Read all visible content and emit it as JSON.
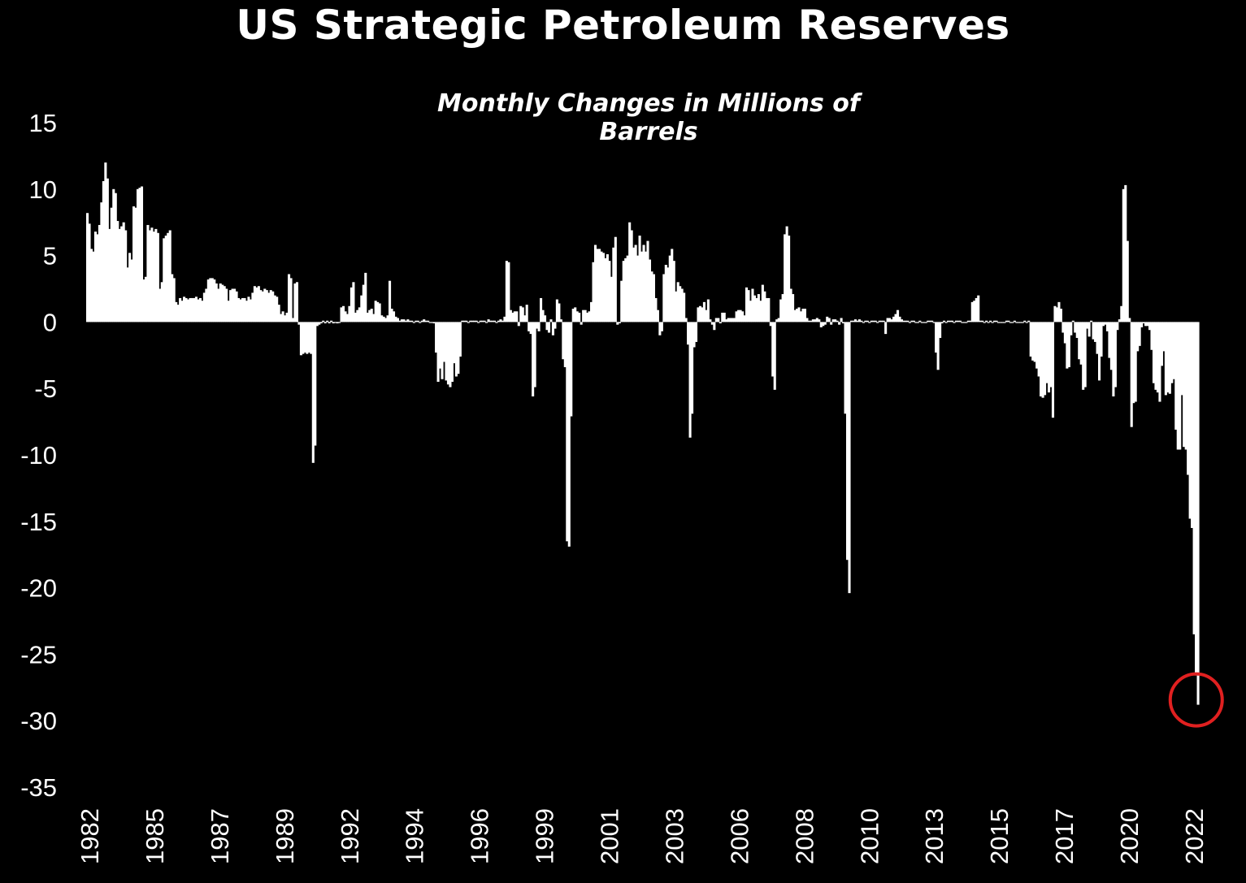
{
  "chart_data": {
    "type": "bar",
    "title": "US Strategic Petroleum Reserves",
    "subtitle": "Monthly Changes in Millions of Barrels",
    "xlabel": "",
    "ylabel": "",
    "ylim": [
      -35,
      15
    ],
    "yticks": [
      15,
      10,
      5,
      0,
      -5,
      -10,
      -15,
      -20,
      -25,
      -30,
      -35
    ],
    "xticks": [
      "1982",
      "1985",
      "1987",
      "1989",
      "1992",
      "1994",
      "1996",
      "1999",
      "2001",
      "2003",
      "2006",
      "2008",
      "2010",
      "2013",
      "2015",
      "2017",
      "2020",
      "2022"
    ],
    "grid": false,
    "bar_color": "#ffffff",
    "highlight_color": "#e02020",
    "highlight_note": "latest monthly change circled",
    "x_start": "1982-01",
    "x_end": "2022-07",
    "series": [
      {
        "values": [
          8.2,
          7.4,
          5.5,
          5.3,
          6.8,
          6.6,
          7.3,
          9,
          10.6,
          12,
          10.8,
          7,
          8.6,
          10,
          9.7,
          7.6,
          7,
          7.2,
          7.5,
          6.9,
          4.1,
          5.2,
          4.7,
          8.7,
          8.6,
          10,
          10.1,
          10.2,
          3.2,
          3.4,
          7.3,
          6.9,
          7.1,
          6.8,
          7,
          6.7,
          2.5,
          3,
          6.3,
          6.5,
          6.7,
          6.9,
          3.6,
          3.3,
          1.5,
          1.3,
          1.8,
          1.6,
          1.9,
          1.8,
          1.7,
          1.8,
          1.8,
          1.8,
          1.9,
          1.7,
          1.8,
          1.6,
          2.2,
          2.5,
          3.2,
          3.3,
          3.3,
          3.2,
          2.9,
          2.5,
          2.9,
          2.8,
          2.7,
          2.5,
          1.6,
          2.4,
          2.5,
          2.5,
          2.3,
          1.8,
          1.7,
          1.8,
          1.8,
          1.6,
          1.9,
          1.7,
          2.2,
          2.7,
          2.6,
          2.7,
          2.4,
          2.3,
          2.5,
          2.4,
          2.2,
          2.4,
          2.3,
          2.0,
          1.9,
          1.3,
          0.6,
          0.8,
          0.5,
          0.7,
          3.6,
          3.3,
          0.3,
          2.9,
          3,
          -0.2,
          -2.5,
          -2.4,
          -2.3,
          -2.4,
          -2.3,
          -2.4,
          -10.6,
          -9.3,
          -0.3,
          -0.2,
          -0.1,
          0.1,
          -0.1,
          0.1,
          -0.1,
          0.1,
          -0.1,
          0,
          -0.1,
          0,
          1.1,
          1.2,
          0.8,
          0.6,
          1.2,
          2.6,
          3,
          0.7,
          0.9,
          1.1,
          2,
          2.8,
          3.7,
          0.7,
          0.9,
          1,
          0.6,
          1.6,
          1.5,
          1.4,
          0.5,
          0.4,
          0.3,
          0.5,
          3.1,
          1,
          0.8,
          0.4,
          0.3,
          0.1,
          0.2,
          0.2,
          0.1,
          0.2,
          0.1,
          0.1,
          0,
          0.1,
          0.1,
          0,
          0.1,
          0.2,
          0.1,
          0.1,
          0,
          0,
          -0.1,
          -2.3,
          -4.5,
          -3.5,
          -4.3,
          -3,
          -4.4,
          -4.7,
          -4.9,
          -4.5,
          -3.1,
          -4.1,
          -3.9,
          -2.6,
          0.1,
          0.1,
          0.1,
          0,
          0.1,
          0.1,
          0.1,
          0.1,
          0,
          0.1,
          0.1,
          0.1,
          0,
          0.2,
          0.1,
          0.1,
          0.1,
          0,
          0.1,
          0.2,
          0.1,
          0.4,
          4.6,
          4.5,
          0.9,
          0.7,
          0.8,
          0.8,
          -0.3,
          1.2,
          1.1,
          0.5,
          1.3,
          -0.7,
          -0.9,
          -5.6,
          -4.9,
          -0.5,
          -0.7,
          1.8,
          0.9,
          0.5,
          -0.6,
          -0.8,
          0.2,
          -1,
          -0.5,
          1.7,
          1.4,
          0.2,
          -2.8,
          -3.4,
          -16.5,
          -16.9,
          -7.1,
          1,
          1.1,
          0.8,
          0.7,
          -0.2,
          0.9,
          0.9,
          0.7,
          0.8,
          1.5,
          4.5,
          5.8,
          5.5,
          5.5,
          5.3,
          5.2,
          4.8,
          5.1,
          4.6,
          3.4,
          5.6,
          6.4,
          -0.2,
          -0.1,
          3.1,
          4.6,
          4.8,
          5,
          7.5,
          6.9,
          5.6,
          5.8,
          5,
          6.5,
          5.3,
          5.8,
          5.3,
          6.1,
          4.7,
          3.8,
          3.6,
          1.8,
          0.9,
          -1,
          -0.7,
          3.6,
          4.3,
          4.1,
          5,
          5.5,
          4.6,
          2.3,
          3,
          2.7,
          2.5,
          2.2,
          0.3,
          -1.7,
          -8.7,
          -6.9,
          -1.9,
          -1.5,
          1.1,
          1.2,
          1.1,
          1.5,
          0.9,
          1.7,
          0.2,
          -0.2,
          -0.6,
          0.3,
          0.3,
          -0.1,
          0.7,
          0.7,
          0.2,
          0.3,
          0.3,
          0.3,
          0.3,
          0.8,
          0.9,
          0.9,
          0.8,
          0.5,
          2.6,
          2.4,
          1.6,
          2.5,
          2,
          1.8,
          2.1,
          1.6,
          2.8,
          2.3,
          1.8,
          1.8,
          -0.3,
          -4.1,
          -5.1,
          0.2,
          0.3,
          1.7,
          2.1,
          6.6,
          7.2,
          6.5,
          2.5,
          2.1,
          0.9,
          1,
          1.1,
          0.8,
          1,
          1,
          0.3,
          0.1,
          0.1,
          0.2,
          0.2,
          0.3,
          0.2,
          -0.4,
          -0.3,
          -0.2,
          0.4,
          0.3,
          -0.2,
          0.2,
          0.2,
          0.1,
          -0.2,
          0.3,
          -0.1,
          -6.9,
          -17.9,
          -20.4,
          0.1,
          0.1,
          0.2,
          0.1,
          0.2,
          0.1,
          0,
          0.1,
          0.1,
          0,
          0.1,
          0.1,
          0.1,
          0,
          0.1,
          0.1,
          0.1,
          -0.9,
          0.3,
          0.3,
          0.2,
          0.4,
          0.6,
          0.9,
          0.4,
          0.2,
          0.1,
          0.1,
          0.1,
          0,
          0.1,
          0.1,
          0,
          0,
          0.1,
          0,
          0,
          0,
          0.1,
          0.1,
          0.1,
          0,
          -2.3,
          -3.6,
          -1.2,
          -0.1,
          0.1,
          0,
          0.1,
          0.1,
          0.1,
          0,
          0.1,
          0.1,
          0.1,
          0,
          0,
          0,
          0.1,
          0.1,
          1.5,
          1.6,
          1.8,
          2,
          0.1,
          0.1,
          0,
          0.1,
          0,
          0.1,
          0,
          0.1,
          0.1,
          0,
          0,
          0,
          0,
          0.1,
          0.1,
          0,
          0,
          0.1,
          0,
          0,
          0,
          0,
          0.1,
          0,
          0.1,
          -2.6,
          -2.9,
          -3,
          -3.5,
          -4.1,
          -5.6,
          -5.7,
          -5.5,
          -4.6,
          -5.3,
          -4.9,
          -7.2,
          1.2,
          1.1,
          1.5,
          1,
          -0.8,
          -1.6,
          -3.5,
          -3.4,
          -1,
          0.1,
          -0.8,
          -1.2,
          -2.8,
          -3.2,
          -5.1,
          -4.9,
          -0.5,
          -1.1,
          0.1,
          -1.3,
          -1.5,
          -2.4,
          -4.4,
          -2.6,
          -0.3,
          -0.2,
          -0.7,
          -2.7,
          -3.6,
          -5.6,
          -4.9,
          -0.6,
          0.2,
          1.2,
          10,
          10.3,
          6.1,
          0.3,
          -7.9,
          -6.1,
          -6,
          -2.2,
          -1.8,
          -0.4,
          -0.1,
          -0.3,
          -0.3,
          -0.6,
          -2.1,
          -4.6,
          -5.1,
          -5.3,
          -6,
          -3.3,
          -2.2,
          -5.5,
          -5.3,
          -5.4,
          -4.6,
          -4.3,
          -8.1,
          -9.6,
          -9.6,
          -5.5,
          -9.4,
          -9.6,
          -11.5,
          -14.8,
          -15.5,
          -23.5,
          -26.6,
          -28.8
        ]
      }
    ]
  }
}
